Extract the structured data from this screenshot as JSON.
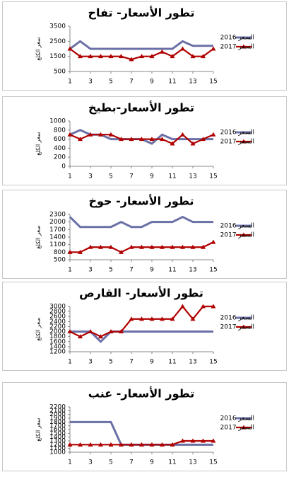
{
  "chart_data": [
    {
      "type": "line",
      "title": "تطور الأسعار- تفاح",
      "y_label": "سعر الكلغ",
      "x": [
        1,
        2,
        3,
        4,
        5,
        6,
        7,
        8,
        9,
        10,
        11,
        12,
        13,
        14,
        15
      ],
      "xlim": [
        1,
        15
      ],
      "xticks": [
        1,
        3,
        5,
        7,
        9,
        11,
        13,
        15
      ],
      "ylim": [
        500,
        3500
      ],
      "yticks": [
        500,
        1500,
        2500,
        3500
      ],
      "series": [
        {
          "name": "السعر 2016",
          "color": "#6b70a6",
          "values": [
            2000,
            2500,
            2000,
            2000,
            2000,
            2000,
            2000,
            2000,
            2000,
            2000,
            2000,
            2500,
            2200,
            2200,
            2200
          ]
        },
        {
          "name": "السعر 2017",
          "color": "#b00000",
          "values": [
            2000,
            1500,
            1500,
            1500,
            1500,
            1500,
            1300,
            1500,
            1500,
            1800,
            1500,
            2000,
            1500,
            1500,
            2000
          ]
        }
      ]
    },
    {
      "type": "line",
      "title": "تطور الأسعار-بطيخ",
      "y_label": "سعر الكلغ",
      "x": [
        1,
        2,
        3,
        4,
        5,
        6,
        7,
        8,
        9,
        10,
        11,
        12,
        13,
        14,
        15
      ],
      "xlim": [
        1,
        15
      ],
      "xticks": [
        1,
        3,
        5,
        7,
        9,
        11,
        13,
        15
      ],
      "ylim": [
        0,
        1000
      ],
      "yticks": [
        0,
        200,
        400,
        600,
        800,
        1000
      ],
      "series": [
        {
          "name": "السعر 2016",
          "color": "#6b70a6",
          "values": [
            700,
            800,
            700,
            700,
            600,
            600,
            600,
            600,
            500,
            700,
            600,
            600,
            600,
            600,
            600
          ]
        },
        {
          "name": "السعر 2017",
          "color": "#b00000",
          "values": [
            700,
            600,
            700,
            700,
            700,
            600,
            600,
            600,
            600,
            600,
            500,
            700,
            500,
            600,
            700
          ]
        }
      ]
    },
    {
      "type": "line",
      "title": "تطور الأسعار- حوخ",
      "y_label": "سعر الكلغ",
      "x": [
        1,
        2,
        3,
        4,
        5,
        6,
        7,
        8,
        9,
        10,
        11,
        12,
        13,
        14,
        15
      ],
      "xlim": [
        1,
        15
      ],
      "xticks": [
        1,
        3,
        5,
        7,
        9,
        11,
        13,
        15
      ],
      "ylim": [
        500,
        2300
      ],
      "yticks": [
        500,
        800,
        1100,
        1400,
        1700,
        2000,
        2300
      ],
      "series": [
        {
          "name": "السعر 2016",
          "color": "#6b70a6",
          "values": [
            2200,
            1800,
            1800,
            1800,
            1800,
            2000,
            1800,
            1800,
            2000,
            2000,
            2000,
            2200,
            2000,
            2000,
            2000
          ]
        },
        {
          "name": "السعر 2017",
          "color": "#b00000",
          "values": [
            800,
            800,
            1000,
            1000,
            1000,
            800,
            1000,
            1000,
            1000,
            1000,
            1000,
            1000,
            1000,
            1000,
            1200
          ]
        }
      ]
    },
    {
      "type": "line",
      "title": "تطور الأسعار- القارص",
      "y_label": "سعر الكلغ",
      "x": [
        1,
        2,
        3,
        4,
        5,
        6,
        7,
        8,
        9,
        10,
        11,
        12,
        13,
        14,
        15
      ],
      "xlim": [
        1,
        15
      ],
      "xticks": [
        1,
        3,
        5,
        7,
        9,
        11,
        13,
        15
      ],
      "ylim": [
        1200,
        3000
      ],
      "yticks": [
        1200,
        1400,
        1600,
        1800,
        2000,
        2200,
        2400,
        2600,
        2800,
        3000
      ],
      "series": [
        {
          "name": "السعر 2016",
          "color": "#6b70a6",
          "values": [
            2000,
            2000,
            2000,
            1600,
            2000,
            2000,
            2000,
            2000,
            2000,
            2000,
            2000,
            2000,
            2000,
            2000,
            2000
          ]
        },
        {
          "name": "السعر 2017",
          "color": "#b00000",
          "values": [
            2000,
            1800,
            2000,
            1800,
            2000,
            2000,
            2500,
            2500,
            2500,
            2500,
            2500,
            3000,
            2500,
            3000,
            3000
          ]
        }
      ]
    },
    {
      "type": "line",
      "title": "تطور الأسعار- عنب",
      "y_label": "سعر الكلغ",
      "x": [
        1,
        2,
        3,
        4,
        5,
        6,
        7,
        8,
        9,
        10,
        11,
        12,
        13,
        14,
        15
      ],
      "xlim": [
        1,
        15
      ],
      "xticks": [
        1,
        3,
        5,
        7,
        9,
        11,
        13,
        15
      ],
      "ylim": [
        1000,
        2200
      ],
      "yticks": [
        1000,
        1100,
        1200,
        1300,
        1400,
        1500,
        1600,
        1700,
        1800,
        1900,
        2000,
        2100,
        2200
      ],
      "series": [
        {
          "name": "السعر 2016",
          "color": "#6b70a6",
          "values": [
            1800,
            1800,
            1800,
            1800,
            1800,
            1200,
            1200,
            1200,
            1200,
            1200,
            1200,
            1200,
            1200,
            1200,
            1200
          ]
        },
        {
          "name": "السعر 2017",
          "color": "#b00000",
          "values": [
            1200,
            1200,
            1200,
            1200,
            1200,
            1200,
            1200,
            1200,
            1200,
            1200,
            1200,
            1300,
            1300,
            1300,
            1300
          ]
        }
      ]
    }
  ]
}
